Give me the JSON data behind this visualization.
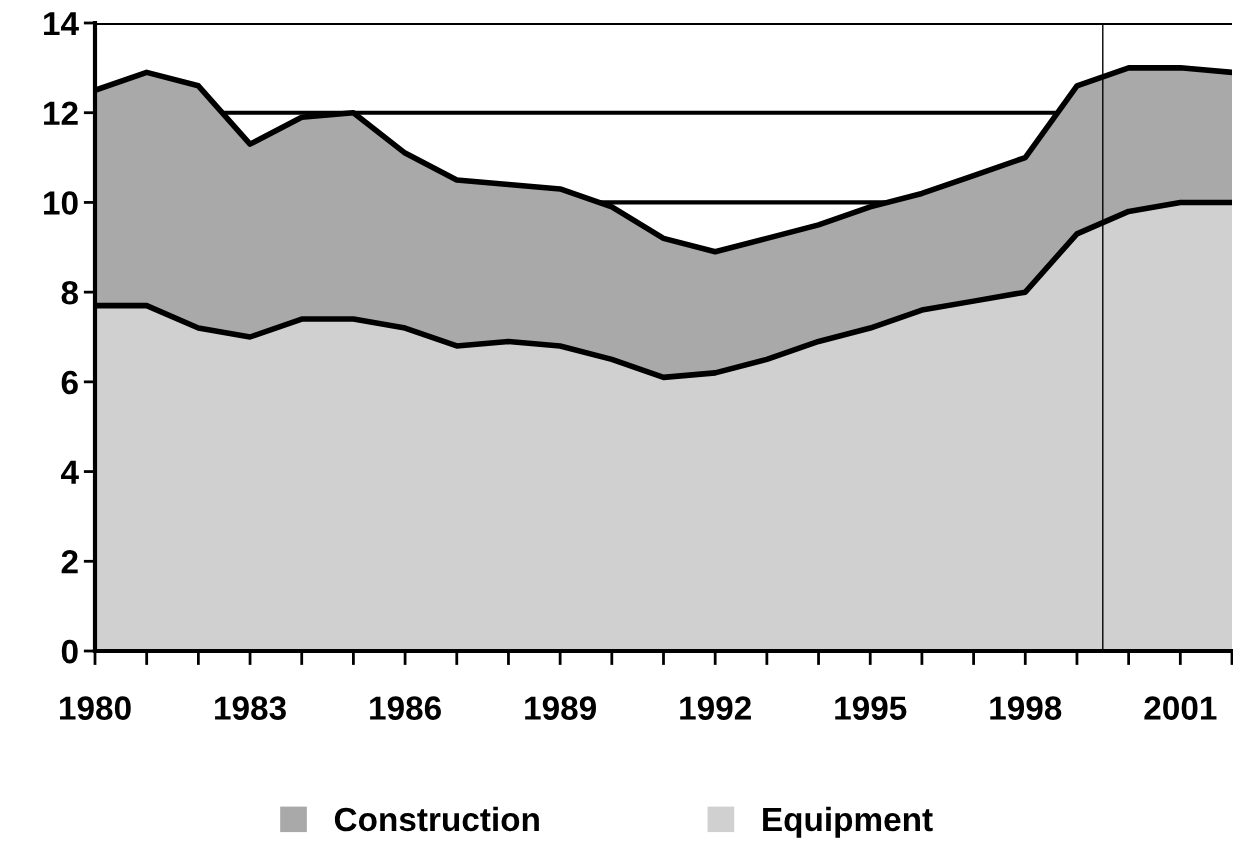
{
  "chart_data": {
    "type": "area",
    "stacked": true,
    "x": [
      1980,
      1981,
      1982,
      1983,
      1984,
      1985,
      1986,
      1987,
      1988,
      1989,
      1990,
      1991,
      1992,
      1993,
      1994,
      1995,
      1996,
      1997,
      1998,
      1999,
      2000,
      2001,
      2002
    ],
    "series": [
      {
        "name": "Equipment",
        "color": "#d0d0d0",
        "values": [
          7.7,
          7.7,
          7.2,
          7.0,
          7.4,
          7.4,
          7.2,
          6.8,
          6.9,
          6.8,
          6.5,
          6.1,
          6.2,
          6.5,
          6.9,
          7.2,
          7.6,
          7.8,
          8.0,
          9.3,
          9.8,
          10.0,
          10.0
        ]
      },
      {
        "name": "Construction",
        "color": "#a9a9a9",
        "values": [
          4.8,
          5.2,
          5.4,
          4.3,
          4.5,
          4.6,
          3.9,
          3.7,
          3.5,
          3.5,
          3.4,
          3.1,
          2.7,
          2.7,
          2.6,
          2.7,
          2.6,
          2.8,
          3.0,
          3.3,
          3.2,
          3.0,
          2.9
        ]
      }
    ],
    "xlim": [
      1980,
      2002
    ],
    "xticks": [
      {
        "value": 1980,
        "label": "1980"
      },
      {
        "value": 1981,
        "label": null
      },
      {
        "value": 1982,
        "label": null
      },
      {
        "value": 1983,
        "label": "1983"
      },
      {
        "value": 1984,
        "label": null
      },
      {
        "value": 1985,
        "label": null
      },
      {
        "value": 1986,
        "label": "1986"
      },
      {
        "value": 1987,
        "label": null
      },
      {
        "value": 1988,
        "label": null
      },
      {
        "value": 1989,
        "label": "1989"
      },
      {
        "value": 1990,
        "label": null
      },
      {
        "value": 1991,
        "label": null
      },
      {
        "value": 1992,
        "label": "1992"
      },
      {
        "value": 1993,
        "label": null
      },
      {
        "value": 1994,
        "label": null
      },
      {
        "value": 1995,
        "label": "1995"
      },
      {
        "value": 1996,
        "label": null
      },
      {
        "value": 1997,
        "label": null
      },
      {
        "value": 1998,
        "label": "1998"
      },
      {
        "value": 1999,
        "label": null
      },
      {
        "value": 2000,
        "label": null
      },
      {
        "value": 2001,
        "label": "2001"
      },
      {
        "value": 2002,
        "label": null
      }
    ],
    "ylim": [
      0,
      14
    ],
    "yticks": [
      0,
      2,
      4,
      6,
      8,
      10,
      12,
      14
    ],
    "ref_lines": [
      {
        "axis": "x",
        "value": 1999.5,
        "color": "#000000"
      }
    ],
    "grid": "y",
    "legend": "bottom"
  }
}
